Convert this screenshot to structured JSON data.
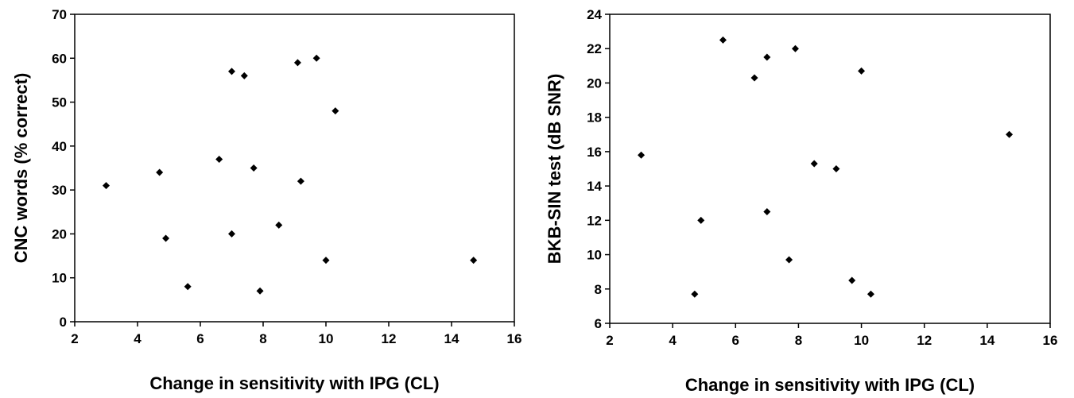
{
  "chart_data": [
    {
      "type": "scatter",
      "xlabel": "Change in sensitivity with IPG (CL)",
      "ylabel": "CNC words (% correct)",
      "xlim": [
        2,
        16
      ],
      "ylim": [
        0,
        70
      ],
      "xticks": [
        "2",
        "4",
        "6",
        "8",
        "10",
        "12",
        "14",
        "16"
      ],
      "yticks": [
        "0",
        "10",
        "20",
        "30",
        "40",
        "50",
        "60",
        "70"
      ],
      "grid": false,
      "marker_color": "#000000",
      "points": [
        {
          "x": 3.0,
          "y": 31
        },
        {
          "x": 4.7,
          "y": 34
        },
        {
          "x": 4.9,
          "y": 19
        },
        {
          "x": 5.6,
          "y": 8
        },
        {
          "x": 6.6,
          "y": 37
        },
        {
          "x": 7.0,
          "y": 57
        },
        {
          "x": 7.0,
          "y": 20
        },
        {
          "x": 7.4,
          "y": 56
        },
        {
          "x": 7.7,
          "y": 35
        },
        {
          "x": 7.9,
          "y": 7
        },
        {
          "x": 8.5,
          "y": 22
        },
        {
          "x": 9.1,
          "y": 59
        },
        {
          "x": 9.2,
          "y": 32
        },
        {
          "x": 9.7,
          "y": 60
        },
        {
          "x": 10.0,
          "y": 14
        },
        {
          "x": 10.3,
          "y": 48
        },
        {
          "x": 14.7,
          "y": 14
        }
      ]
    },
    {
      "type": "scatter",
      "xlabel": "Change in sensitivity with IPG (CL)",
      "ylabel": "BKB-SIN test (dB SNR)",
      "xlim": [
        2,
        16
      ],
      "ylim": [
        6,
        24
      ],
      "xticks": [
        "2",
        "4",
        "6",
        "8",
        "10",
        "12",
        "14",
        "16"
      ],
      "yticks": [
        "6",
        "8",
        "10",
        "12",
        "14",
        "16",
        "18",
        "20",
        "22",
        "24"
      ],
      "grid": false,
      "marker_color": "#000000",
      "points": [
        {
          "x": 3.0,
          "y": 15.8
        },
        {
          "x": 4.7,
          "y": 7.7
        },
        {
          "x": 4.9,
          "y": 12.0
        },
        {
          "x": 5.6,
          "y": 22.5
        },
        {
          "x": 6.6,
          "y": 20.3
        },
        {
          "x": 7.0,
          "y": 21.5
        },
        {
          "x": 7.0,
          "y": 12.5
        },
        {
          "x": 7.7,
          "y": 9.7
        },
        {
          "x": 7.9,
          "y": 22.0
        },
        {
          "x": 8.5,
          "y": 15.3
        },
        {
          "x": 9.2,
          "y": 15.0
        },
        {
          "x": 9.7,
          "y": 8.5
        },
        {
          "x": 10.0,
          "y": 20.7
        },
        {
          "x": 10.3,
          "y": 7.7
        },
        {
          "x": 14.7,
          "y": 17.0
        }
      ]
    }
  ]
}
